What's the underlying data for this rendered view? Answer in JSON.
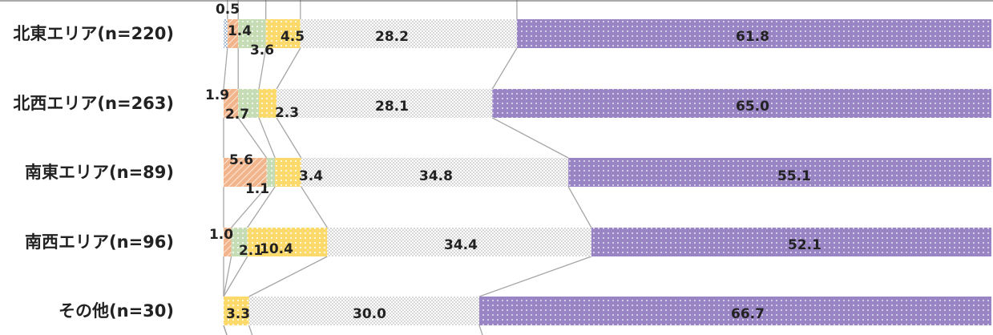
{
  "chart_data": {
    "type": "bar",
    "stacked": true,
    "orientation": "horizontal",
    "percent": true,
    "title": "",
    "xlabel": "",
    "ylabel": "",
    "xlim": [
      0,
      100
    ],
    "grid": false,
    "legend": "none",
    "categories": [
      "北東エリア(n=220)",
      "北西エリア(n=263)",
      "南東エリア(n=89)",
      "南西エリア(n=96)",
      "その他(n=30)"
    ],
    "series": [
      {
        "values": [
          0.5,
          0,
          0,
          0,
          0
        ],
        "color": "#9dbadb",
        "pattern": "checker"
      },
      {
        "values": [
          1.4,
          1.9,
          5.6,
          1.0,
          0
        ],
        "color": "#f2b48a",
        "pattern": "hatch"
      },
      {
        "values": [
          3.6,
          2.7,
          1.1,
          2.1,
          0
        ],
        "color": "#c6dcb4",
        "pattern": "dots"
      },
      {
        "values": [
          4.5,
          2.3,
          3.4,
          10.4,
          3.3
        ],
        "color": "#fbd96a",
        "pattern": "dots"
      },
      {
        "values": [
          28.2,
          28.1,
          34.8,
          34.4,
          30.0
        ],
        "color": "#f2f2f2",
        "pattern": "checker"
      },
      {
        "values": [
          61.8,
          65.0,
          55.1,
          52.1,
          66.7
        ],
        "color": "#9a85c4",
        "pattern": "dots"
      }
    ],
    "data_labels": [
      [
        "0.5",
        "1.4",
        "3.6",
        "4.5",
        "28.2",
        "61.8"
      ],
      [
        "",
        "1.9",
        "2.7",
        "2.3",
        "28.1",
        "65.0"
      ],
      [
        "",
        "5.6",
        "1.1",
        "3.4",
        "34.8",
        "55.1"
      ],
      [
        "",
        "1.0",
        "2.1",
        "10.4",
        "34.4",
        "52.1"
      ],
      [
        "",
        "",
        "",
        "3.3",
        "30.0",
        "66.7"
      ]
    ]
  }
}
